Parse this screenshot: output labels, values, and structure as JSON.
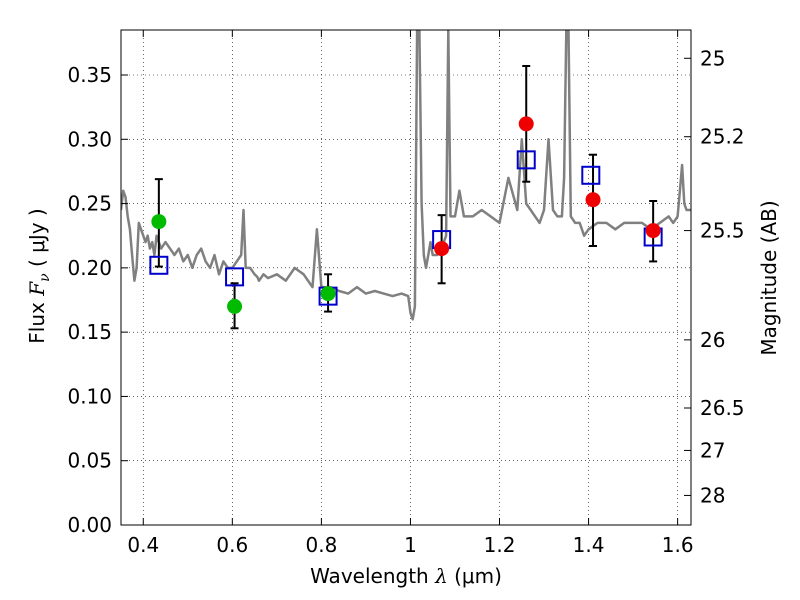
{
  "chart_data": {
    "type": "scatter",
    "title": "",
    "xlabel": {
      "prefix": "Wavelength  ",
      "symbol": "λ",
      "unit": " (μm)"
    },
    "ylabel": {
      "prefix": "Flux  ",
      "symbol": "F",
      "sub": "ν",
      "unit": "  ( μJy )"
    },
    "y2label": "Magnitude (AB)",
    "xlim": [
      0.35,
      1.63
    ],
    "ylim": [
      0.0,
      0.385
    ],
    "grid": true,
    "x_ticks": [
      0.4,
      0.6,
      0.8,
      1.0,
      1.2,
      1.4,
      1.6
    ],
    "x_tick_labels": [
      "0.4",
      "0.6",
      "0.8",
      "1",
      "1.2",
      "1.4",
      "1.6"
    ],
    "y_ticks": [
      0.0,
      0.05,
      0.1,
      0.15,
      0.2,
      0.25,
      0.3,
      0.35
    ],
    "y_tick_labels": [
      "0.00",
      "0.05",
      "0.10",
      "0.15",
      "0.20",
      "0.25",
      "0.30",
      "0.35"
    ],
    "y2_ticks": [
      {
        "label": "25",
        "flux": 0.363
      },
      {
        "label": "25.2",
        "flux": 0.302
      },
      {
        "label": "25.5",
        "flux": 0.229
      },
      {
        "label": "26",
        "flux": 0.144
      },
      {
        "label": "26.5",
        "flux": 0.091
      },
      {
        "label": "27",
        "flux": 0.058
      },
      {
        "label": "28",
        "flux": 0.023
      }
    ],
    "series": [
      {
        "kind": "line",
        "color": "#808080",
        "x": [
          0.35,
          0.355,
          0.36,
          0.365,
          0.37,
          0.375,
          0.38,
          0.385,
          0.39,
          0.395,
          0.4,
          0.405,
          0.41,
          0.415,
          0.42,
          0.425,
          0.43,
          0.44,
          0.45,
          0.46,
          0.47,
          0.48,
          0.49,
          0.5,
          0.51,
          0.52,
          0.53,
          0.54,
          0.55,
          0.56,
          0.57,
          0.58,
          0.59,
          0.6,
          0.61,
          0.62,
          0.625,
          0.63,
          0.64,
          0.65,
          0.656,
          0.66,
          0.67,
          0.68,
          0.7,
          0.72,
          0.74,
          0.76,
          0.78,
          0.79,
          0.8,
          0.82,
          0.84,
          0.86,
          0.88,
          0.9,
          0.92,
          0.94,
          0.96,
          0.98,
          0.995,
          1.0,
          1.005,
          1.01,
          1.015,
          1.02,
          1.025,
          1.03,
          1.035,
          1.04,
          1.045,
          1.05,
          1.06,
          1.07,
          1.08,
          1.085,
          1.09,
          1.1,
          1.11,
          1.12,
          1.14,
          1.16,
          1.18,
          1.2,
          1.22,
          1.24,
          1.25,
          1.26,
          1.27,
          1.28,
          1.29,
          1.3,
          1.31,
          1.32,
          1.33,
          1.34,
          1.345,
          1.35,
          1.355,
          1.36,
          1.37,
          1.38,
          1.39,
          1.4,
          1.42,
          1.44,
          1.46,
          1.48,
          1.5,
          1.52,
          1.54,
          1.56,
          1.58,
          1.59,
          1.6,
          1.605,
          1.61,
          1.615,
          1.62,
          1.63
        ],
        "y": [
          0.245,
          0.26,
          0.255,
          0.24,
          0.23,
          0.21,
          0.19,
          0.2,
          0.235,
          0.23,
          0.225,
          0.22,
          0.225,
          0.215,
          0.22,
          0.21,
          0.225,
          0.215,
          0.22,
          0.215,
          0.21,
          0.215,
          0.205,
          0.21,
          0.2,
          0.21,
          0.215,
          0.205,
          0.2,
          0.21,
          0.195,
          0.205,
          0.2,
          0.2,
          0.205,
          0.21,
          0.245,
          0.2,
          0.2,
          0.195,
          0.193,
          0.19,
          0.195,
          0.192,
          0.195,
          0.19,
          0.2,
          0.195,
          0.185,
          0.23,
          0.185,
          0.185,
          0.182,
          0.18,
          0.185,
          0.18,
          0.182,
          0.18,
          0.178,
          0.18,
          0.178,
          0.165,
          0.16,
          0.17,
          0.385,
          0.385,
          0.25,
          0.21,
          0.2,
          0.21,
          0.22,
          0.21,
          0.21,
          0.215,
          0.225,
          0.385,
          0.24,
          0.24,
          0.26,
          0.24,
          0.24,
          0.245,
          0.24,
          0.235,
          0.27,
          0.245,
          0.3,
          0.25,
          0.245,
          0.24,
          0.235,
          0.245,
          0.3,
          0.245,
          0.24,
          0.24,
          0.27,
          0.385,
          0.385,
          0.24,
          0.235,
          0.235,
          0.225,
          0.23,
          0.235,
          0.235,
          0.23,
          0.235,
          0.235,
          0.235,
          0.23,
          0.235,
          0.24,
          0.235,
          0.24,
          0.26,
          0.28,
          0.25,
          0.245,
          0.245
        ]
      },
      {
        "kind": "errorbars",
        "color": "#000000",
        "points": [
          {
            "x": 0.435,
            "low": 0.201,
            "high": 0.269
          },
          {
            "x": 0.605,
            "low": 0.153,
            "high": 0.188
          },
          {
            "x": 0.815,
            "low": 0.166,
            "high": 0.195
          },
          {
            "x": 1.07,
            "low": 0.188,
            "high": 0.241
          },
          {
            "x": 1.26,
            "low": 0.267,
            "high": 0.357
          },
          {
            "x": 1.41,
            "low": 0.217,
            "high": 0.288
          },
          {
            "x": 1.545,
            "low": 0.205,
            "high": 0.252
          }
        ]
      },
      {
        "kind": "squares",
        "color": "#0000cc",
        "points": [
          {
            "x": 0.435,
            "y": 0.202
          },
          {
            "x": 0.605,
            "y": 0.193
          },
          {
            "x": 0.815,
            "y": 0.178
          },
          {
            "x": 1.07,
            "y": 0.222
          },
          {
            "x": 1.26,
            "y": 0.284
          },
          {
            "x": 1.405,
            "y": 0.272
          },
          {
            "x": 1.545,
            "y": 0.224
          }
        ]
      },
      {
        "kind": "circles",
        "color": "#00bb00",
        "points": [
          {
            "x": 0.435,
            "y": 0.236
          },
          {
            "x": 0.605,
            "y": 0.17
          },
          {
            "x": 0.815,
            "y": 0.18
          }
        ]
      },
      {
        "kind": "circles",
        "color": "#ee0000",
        "points": [
          {
            "x": 1.07,
            "y": 0.215
          },
          {
            "x": 1.26,
            "y": 0.312
          },
          {
            "x": 1.41,
            "y": 0.253
          },
          {
            "x": 1.545,
            "y": 0.229
          }
        ]
      }
    ]
  }
}
